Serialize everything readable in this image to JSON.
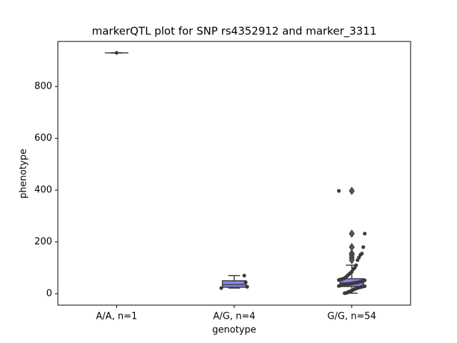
{
  "chart_data": {
    "type": "box",
    "title": "markerQTL plot for SNP rs4352912 and marker_3311",
    "x_label": "genotype",
    "y_label": "phenotype",
    "categories": [
      "A/A, n=1",
      "A/G, n=4",
      "G/G, n=54"
    ],
    "box_color": "#8486ec",
    "edge_color": "#3f3f3f",
    "point_color": "#3a3a3a",
    "ylim": [
      -44,
      974
    ],
    "yticks": [
      0,
      200,
      400,
      600,
      800
    ],
    "boxes": [
      {
        "min": 930,
        "q1": 930,
        "median": 930,
        "q3": 930,
        "max": 930,
        "outliers": [],
        "points": [
          930
        ]
      },
      {
        "min": 22,
        "q1": 25,
        "median": 35,
        "q3": 50,
        "max": 70,
        "outliers": [],
        "points": [
          22,
          27,
          44,
          70
        ]
      },
      {
        "min": 2,
        "q1": 28,
        "median": 42,
        "q3": 58,
        "max": 110,
        "outliers": [
          397,
          232,
          180,
          155,
          150,
          140,
          130
        ],
        "points": [
          397,
          232,
          180,
          155,
          150,
          140,
          130,
          110,
          100,
          95,
          85,
          80,
          75,
          70,
          65,
          60,
          58,
          56,
          55,
          53,
          52,
          50,
          48,
          47,
          45,
          44,
          43,
          42,
          41,
          40,
          39,
          38,
          37,
          36,
          35,
          34,
          33,
          32,
          30,
          29,
          28,
          27,
          25,
          24,
          22,
          20,
          18,
          15,
          12,
          10,
          8,
          5,
          3,
          2
        ]
      }
    ]
  }
}
